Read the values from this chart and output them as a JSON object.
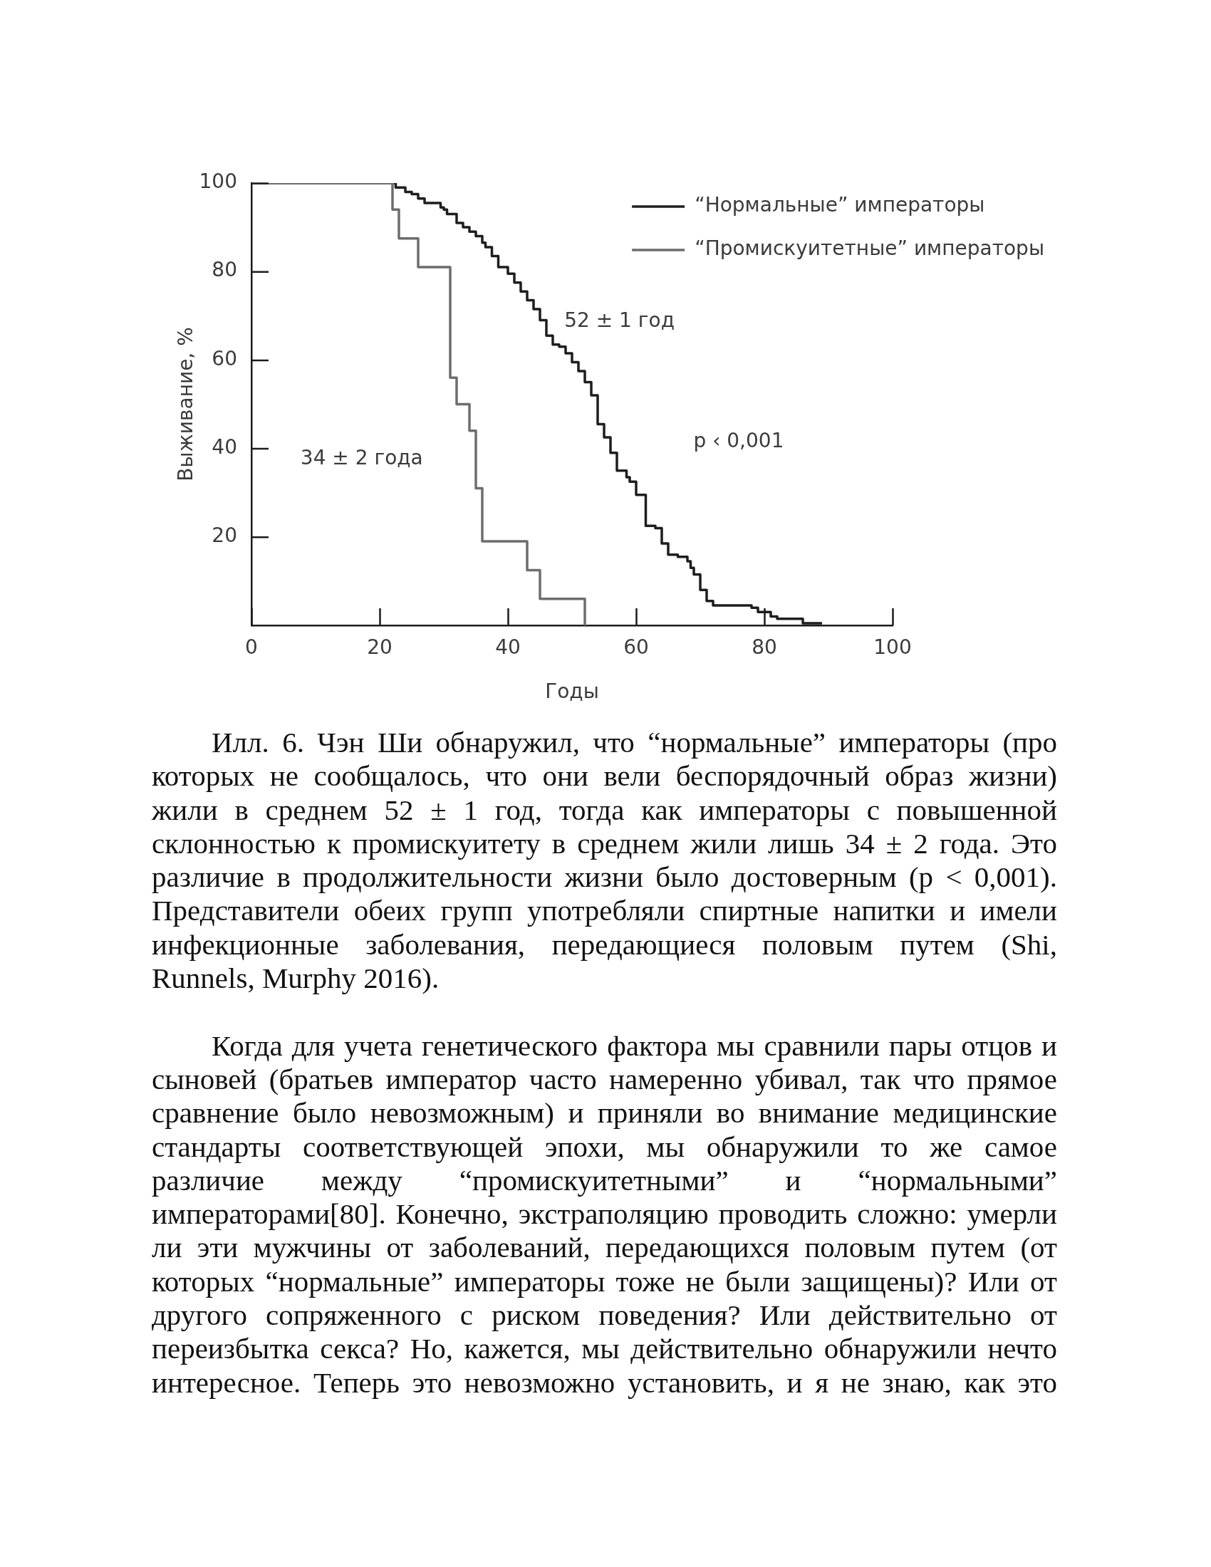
{
  "chart_data": {
    "type": "step",
    "xlabel": "Годы",
    "ylabel": "Выживание, %",
    "xlim": [
      0,
      100
    ],
    "xticks": [
      0,
      20,
      40,
      60,
      80,
      100
    ],
    "ylim": [
      0,
      100
    ],
    "yticks": [
      20,
      40,
      60,
      80,
      100
    ],
    "legend": "top right",
    "marker": "none",
    "series": [
      {
        "name": "“Нормальные” императоры",
        "color": "#1e1e1e",
        "x": [
          0,
          22.5,
          24,
          25,
          26,
          27,
          29.5,
          30,
          30.5,
          32,
          33,
          34,
          35,
          36,
          36.5,
          37.5,
          38.5,
          40,
          41,
          42,
          43,
          44,
          45,
          46,
          47,
          48,
          49,
          50,
          51,
          52,
          53,
          54,
          55,
          56,
          57,
          58.5,
          59,
          60,
          61.5,
          63,
          64,
          65,
          66.5,
          68,
          68.5,
          69,
          70,
          71,
          72,
          78,
          79,
          81,
          82,
          86,
          89
        ],
        "values": [
          100,
          99,
          98,
          97.5,
          96.5,
          95.5,
          94.5,
          94,
          93,
          91,
          90,
          89,
          88,
          86.5,
          85.5,
          83.5,
          81,
          79.5,
          77.5,
          75.5,
          73.5,
          71.5,
          69,
          65.5,
          63.5,
          63,
          61.5,
          59.5,
          57.5,
          55,
          52,
          45.5,
          42.5,
          39,
          35,
          33.5,
          32.5,
          29.5,
          22.5,
          22,
          18.5,
          16,
          15.5,
          14.5,
          13,
          11.5,
          8,
          5.5,
          4.5,
          4,
          3,
          2,
          1.5,
          0.5,
          0.5
        ]
      },
      {
        "name": "“Промискуитетные” императоры",
        "color": "#6d6d6d",
        "x": [
          0,
          22,
          23,
          26,
          31,
          32,
          34,
          35,
          36,
          43,
          45,
          52
        ],
        "values": [
          100,
          94,
          87.5,
          81,
          56,
          50,
          44,
          31,
          19,
          12.5,
          6,
          0
        ]
      }
    ],
    "annotations": [
      "52 ± 1 год",
      "p ‹ 0,001",
      "34 ± 2 года",
      "Илл. 6. Чэн Ши обнаружил, что “нормальные” императоры (про которых не сообщалось, что они вели беспорядочный образ жизни) жили в среднем 52 ± 1 год, тогда как императоры с повышенной склонностью к промискуитету в среднем жили лишь 34 ± 2 года. Это различие в продолжительности жизни было достоверным (p < 0,001). Представители обеих групп употребляли спиртные напитки и имели инфекционные заболевания, передающиеся половым путем (Shi, Runnels, Murphy 2016).",
      "Когда для учета генетического фактора мы сравнили пары отцов и сыновей (братьев император часто намеренно убивал, так что прямое сравнение было невозможным) и приняли во внимание медицинские стандарты соответствующей эпохи, мы обнаружили то же самое различие между “промискуитетными” и “нормальными” императорами[80]. Конечно, экстраполяцию проводить сложно: умерли ли эти мужчины от заболеваний, передающихся половым путем (от которых “нормальные” императоры тоже не были защищены)? Или от другого сопряженного с риском поведения? Или действительно от переизбытка секса? Но, кажется, мы действительно обнаружили нечто интересное. Теперь это невозможно установить, и я не знаю, как это"
    ]
  }
}
